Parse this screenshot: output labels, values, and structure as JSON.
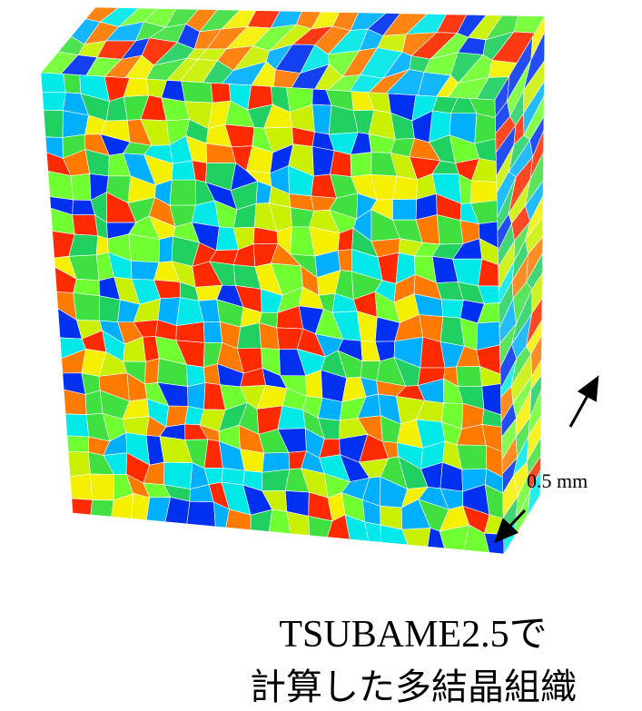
{
  "scale_label": "0.5 mm",
  "caption": {
    "line1": "TSUBAME2.5で",
    "line2": "計算した多結晶組織"
  }
}
